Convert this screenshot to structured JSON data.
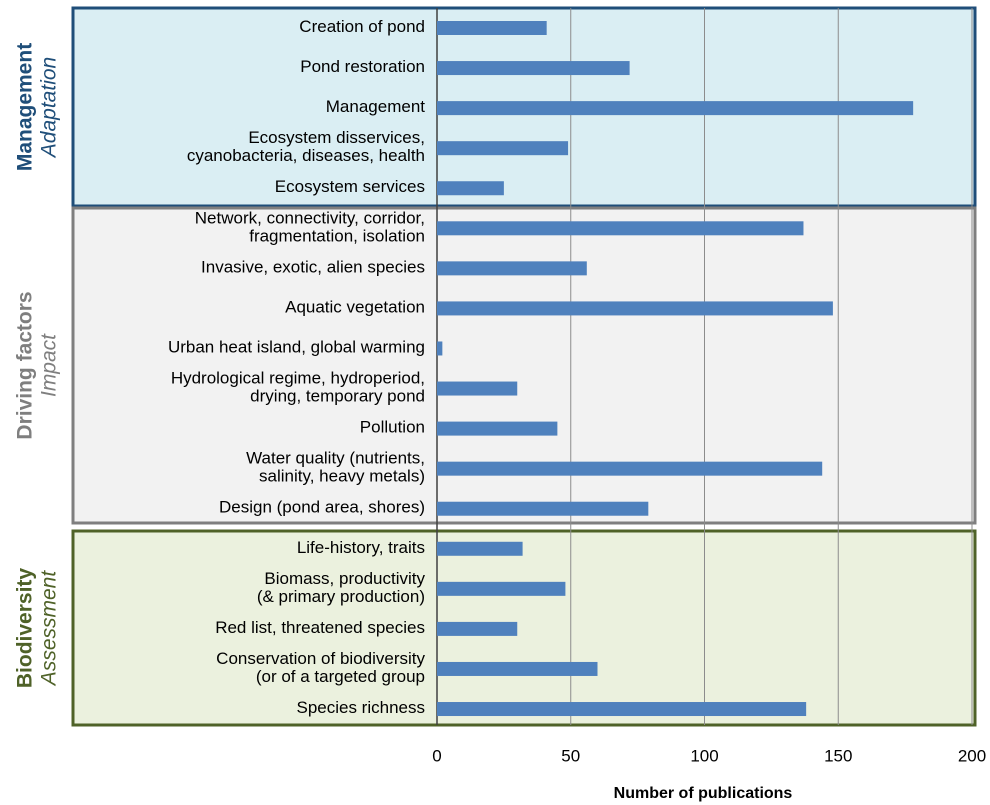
{
  "chart_data": {
    "type": "bar",
    "orientation": "horizontal",
    "xlabel": "Number of publications",
    "categories": [
      "Creation of pond",
      "Pond restoration",
      "Management",
      "Ecosystem disservices,\ncyanobacteria, diseases, health",
      "Ecosystem services",
      "Network, connectivity, corridor,\nfragmentation, isolation",
      "Invasive, exotic, alien species",
      "Aquatic vegetation",
      "Urban heat island, global warming",
      "Hydrological regime, hydroperiod,\ndrying, temporary pond",
      "Pollution",
      "Water quality (nutrients,\nsalinity, heavy metals)",
      "Design (pond area, shores)",
      "Life-history,  traits",
      "Biomass, productivity\n(& primary production)",
      "Red list, threatened species",
      "Conservation of biodiversity\n(or of a targeted group",
      "Species richness"
    ],
    "values": [
      41,
      72,
      178,
      49,
      25,
      137,
      56,
      148,
      2,
      30,
      45,
      144,
      79,
      32,
      48,
      30,
      60,
      138
    ],
    "color": "#4f81bd",
    "xlim": [
      0,
      200
    ],
    "xticks": [
      0,
      50,
      100,
      150,
      200
    ],
    "grid": true,
    "groups": [
      {
        "title": "Management",
        "subtitle": "Adaptation",
        "fill": "#daeef3",
        "border": "#1f4e79"
      },
      {
        "title": "Driving factors",
        "subtitle": "Impact",
        "fill": "#f2f2f2",
        "border": "#7f7f7f"
      },
      {
        "title": "Biodiversity",
        "subtitle": "Assessment",
        "fill": "#ebf1de",
        "border": "#4f6228"
      }
    ]
  }
}
